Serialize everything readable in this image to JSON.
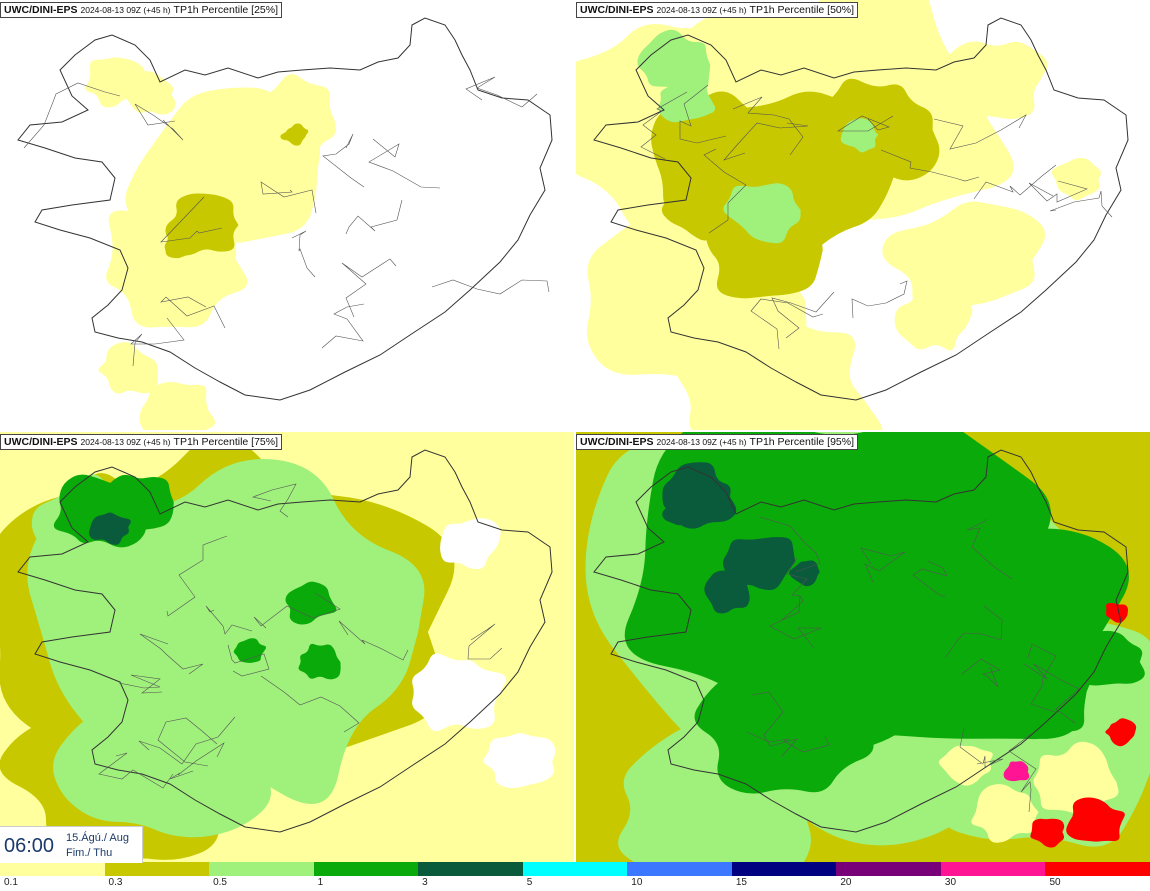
{
  "panels": [
    {
      "model": "UWC/DINI-EPS",
      "run": "2024-08-13 09Z (+45 h)",
      "field": "TP1h Percentile [25%]",
      "percentile": 25
    },
    {
      "model": "UWC/DINI-EPS",
      "run": "2024-08-13 09Z (+45 h)",
      "field": "TP1h Percentile [50%]",
      "percentile": 50
    },
    {
      "model": "UWC/DINI-EPS",
      "run": "2024-08-13 09Z (+45 h)",
      "field": "TP1h Percentile [75%]",
      "percentile": 75
    },
    {
      "model": "UWC/DINI-EPS",
      "run": "2024-08-13 09Z (+45 h)",
      "field": "TP1h Percentile [95%]",
      "percentile": 95
    }
  ],
  "valid_time": {
    "clock": "06:00",
    "date_line": "15.Ágú./ Aug",
    "day_line": "Fim./ Thu"
  },
  "legend": {
    "ticks": [
      "0.1",
      "0.3",
      "0.5",
      "1",
      "3",
      "5",
      "10",
      "15",
      "20",
      "30",
      "50"
    ],
    "colors": [
      "#ffff9e",
      "#c8c800",
      "#a0f07c",
      "#0aaa0a",
      "#0a5a3c",
      "#00ffff",
      "#3c78ff",
      "#000080",
      "#780078",
      "#ff1493",
      "#ff0000"
    ]
  }
}
